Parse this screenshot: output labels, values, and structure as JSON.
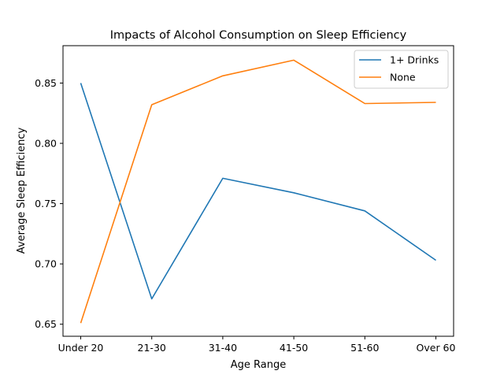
{
  "chart_data": {
    "type": "line",
    "title": "Impacts of Alcohol Consumption on Sleep Efficiency",
    "xlabel": "Age Range",
    "ylabel": "Average Sleep Efficiency",
    "categories": [
      "Under 20",
      "21-30",
      "31-40",
      "41-50",
      "51-60",
      "Over 60"
    ],
    "ylim": [
      0.64,
      0.881
    ],
    "yticks": [
      0.65,
      0.7,
      0.75,
      0.8,
      0.85
    ],
    "ytick_labels": [
      "0.65",
      "0.70",
      "0.75",
      "0.80",
      "0.85"
    ],
    "grid": false,
    "legend_position": "top-right",
    "series": [
      {
        "name": "1+ Drinks",
        "color": "#1f77b4",
        "values": [
          0.85,
          0.671,
          0.771,
          0.759,
          0.744,
          0.703
        ]
      },
      {
        "name": "None",
        "color": "#ff7f0e",
        "values": [
          0.651,
          0.832,
          0.856,
          0.869,
          0.833,
          0.834
        ]
      }
    ]
  }
}
